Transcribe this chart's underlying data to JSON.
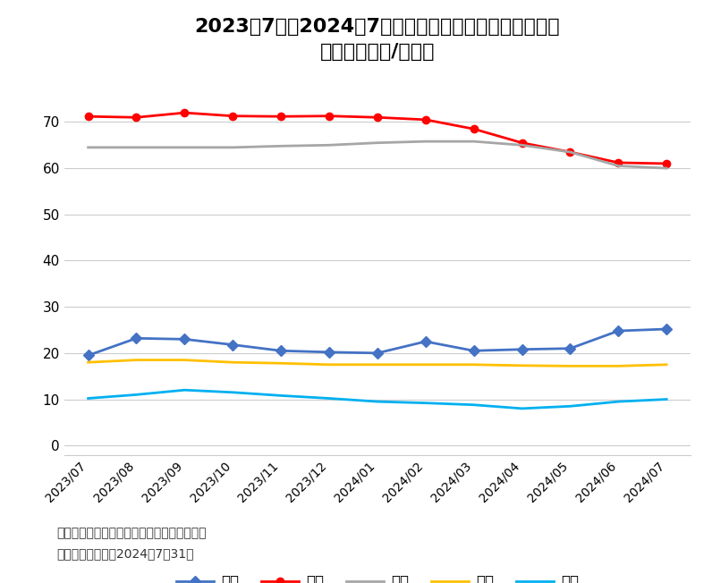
{
  "title": "2023年7月至2024年7月全国主要畜禽产品批发价格月度\n变化情况（元/公斤）",
  "x_labels": [
    "2023/07",
    "2023/08",
    "2023/09",
    "2023/10",
    "2023/11",
    "2023/12",
    "2024/01",
    "2024/02",
    "2024/03",
    "2024/04",
    "2024/05",
    "2024/06",
    "2024/07"
  ],
  "series": {
    "猪肉": {
      "values": [
        19.5,
        23.2,
        23.0,
        21.8,
        20.5,
        20.2,
        20.0,
        22.5,
        20.5,
        20.8,
        21.0,
        24.8,
        25.2
      ],
      "color": "#4472C4",
      "marker": "D",
      "linewidth": 2.0,
      "markersize": 6
    },
    "牛肉": {
      "values": [
        71.2,
        71.0,
        72.0,
        71.3,
        71.2,
        71.3,
        71.0,
        70.5,
        68.5,
        65.5,
        63.5,
        61.2,
        61.0
      ],
      "color": "#FF0000",
      "marker": "o",
      "linewidth": 2.0,
      "markersize": 6
    },
    "羊肉": {
      "values": [
        64.5,
        64.5,
        64.5,
        64.5,
        64.8,
        65.0,
        65.5,
        65.8,
        65.8,
        65.0,
        63.5,
        60.5,
        60.0
      ],
      "color": "#A6A6A6",
      "marker": null,
      "linewidth": 2.0,
      "markersize": 0
    },
    "鸡肉": {
      "values": [
        18.0,
        18.5,
        18.5,
        18.0,
        17.8,
        17.5,
        17.5,
        17.5,
        17.5,
        17.3,
        17.2,
        17.2,
        17.5
      ],
      "color": "#FFC000",
      "marker": null,
      "linewidth": 2.0,
      "markersize": 0
    },
    "鸡蛋": {
      "values": [
        10.2,
        11.0,
        12.0,
        11.5,
        10.8,
        10.2,
        9.5,
        9.2,
        8.8,
        8.0,
        8.5,
        9.5,
        10.0
      ],
      "color": "#00B0F0",
      "marker": null,
      "linewidth": 2.0,
      "markersize": 0
    }
  },
  "ylim": [
    -2,
    80
  ],
  "yticks": [
    0,
    10,
    20,
    30,
    40,
    50,
    60,
    70
  ],
  "background_color": "#FFFFFF",
  "grid_color": "#CCCCCC",
  "source_text": "资料来源：农业农村部，红餐产业研究院整理\n数据统计时间截至2024年7月31日",
  "legend_order": [
    "猪肉",
    "牛肉",
    "羊肉",
    "鸡肉",
    "鸡蛋"
  ]
}
